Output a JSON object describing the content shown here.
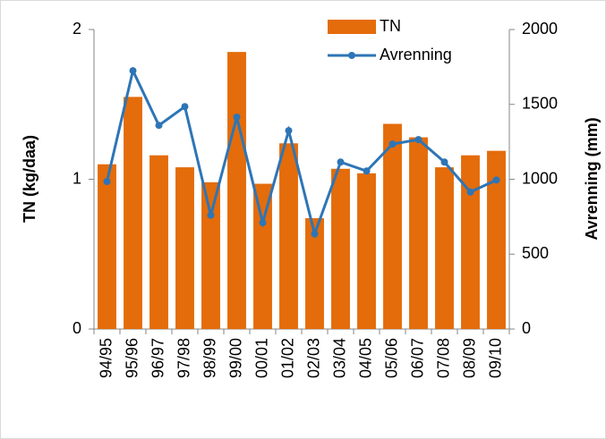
{
  "chart_data": {
    "type": "bar-line",
    "categories": [
      "94/95",
      "95/96",
      "96/97",
      "97/98",
      "98/99",
      "99/00",
      "00/01",
      "01/02",
      "02/03",
      "03/04",
      "04/05",
      "05/06",
      "06/07",
      "07/08",
      "08/09",
      "09/10"
    ],
    "series": [
      {
        "name": "TN",
        "type": "bar",
        "axis": "y",
        "color": "#e46c0a",
        "values": [
          1.1,
          1.55,
          1.16,
          1.08,
          0.98,
          1.85,
          0.97,
          1.24,
          0.74,
          1.07,
          1.04,
          1.37,
          1.28,
          1.08,
          1.16,
          1.19
        ]
      },
      {
        "name": "Avrenning",
        "type": "line",
        "axis": "y2",
        "color": "#2e75b6",
        "values": [
          985,
          1725,
          1360,
          1485,
          760,
          1415,
          710,
          1325,
          635,
          1115,
          1055,
          1235,
          1265,
          1115,
          915,
          995
        ]
      }
    ],
    "ylabel": "TN (kg/daa)",
    "y2label": "Avrenning (mm)",
    "ylim": [
      0,
      2
    ],
    "yticks": [
      0,
      1,
      2
    ],
    "y2lim": [
      0,
      2000
    ],
    "y2ticks": [
      0,
      500,
      1000,
      1500,
      2000
    ],
    "grid": false
  }
}
